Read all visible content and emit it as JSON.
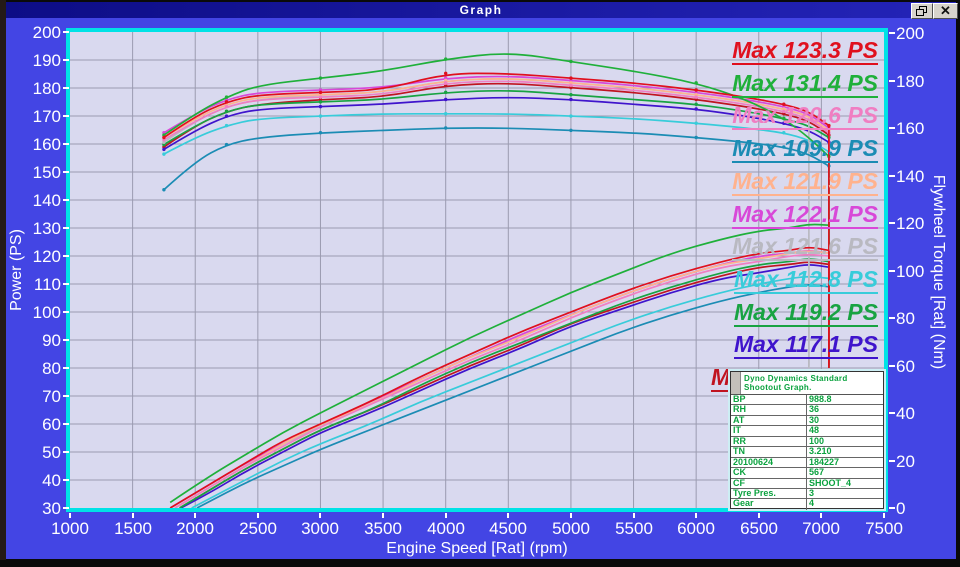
{
  "window": {
    "title": "Graph",
    "icons": {
      "close": "✕"
    }
  },
  "colors": {
    "window_bg": "#4345e4",
    "titlebar": "#15159a",
    "plot_bg": "#d9d9ef",
    "grid": "#9b9bb0",
    "plot_border": "#00e2e6",
    "table_text": "#0aa23e"
  },
  "chart_data": {
    "type": "line",
    "xlabel": "Engine Speed [Rat] (rpm)",
    "ylabel_left": "Power (PS)",
    "ylabel_right": "Flywheel Torque [Rat] (Nm)",
    "xlim": [
      1000,
      7500
    ],
    "ylim_left": [
      30,
      200
    ],
    "ylim_right": [
      0,
      200
    ],
    "grid": true,
    "x_ticks": [
      1000,
      1500,
      2000,
      2500,
      3000,
      3500,
      4000,
      4500,
      5000,
      5500,
      6000,
      6500,
      7000,
      7500
    ],
    "y_left_ticks": [
      200,
      190,
      180,
      170,
      160,
      150,
      140,
      130,
      120,
      110,
      100,
      90,
      80,
      70,
      60,
      50,
      40,
      30
    ],
    "y_right_ticks": [
      200,
      180,
      160,
      140,
      120,
      100,
      80,
      60,
      40,
      20,
      0
    ],
    "torque_rpm": [
      1750,
      2000,
      2250,
      2500,
      3000,
      3500,
      4000,
      4500,
      5000,
      5500,
      6000,
      6400,
      6700,
      6900,
      7060
    ],
    "power_rpm": [
      1800,
      2100,
      2400,
      2700,
      3000,
      3400,
      3800,
      4200,
      4600,
      5000,
      5400,
      5800,
      6200,
      6500,
      6750,
      6900,
      7060
    ],
    "drop_end": {
      "power_ps": 80,
      "torque_nm": 60
    },
    "series": [
      {
        "id": "run-1",
        "label": "Max 123.3 PS",
        "color": "#e0101e",
        "max_ps": 123.3,
        "partial": false,
        "torque_nm": [
          156,
          165,
          171,
          174,
          175,
          176,
          183,
          183,
          181,
          179,
          176,
          173,
          170,
          167,
          161
        ],
        "power_ps": [
          30,
          38,
          46,
          54,
          60,
          68,
          77,
          85,
          93,
          100,
          107,
          113,
          118,
          121,
          122,
          123.3,
          122
        ]
      },
      {
        "id": "run-2",
        "label": "Max 131.4 PS",
        "color": "#1fb03a",
        "max_ps": 131.4,
        "partial": false,
        "torque_nm": [
          157,
          166,
          173,
          178,
          181,
          184,
          189,
          192,
          188,
          184,
          179,
          172,
          164,
          156,
          148
        ],
        "power_ps": [
          32,
          41,
          49,
          57,
          64,
          73,
          82,
          91,
          99,
          107,
          114,
          121,
          126,
          129,
          130,
          131.4,
          131
        ]
      },
      {
        "id": "run-3",
        "label": "Max 120.6 PS",
        "color": "#f07ec2",
        "max_ps": 120.6,
        "partial": false,
        "torque_nm": [
          155,
          163,
          169,
          172,
          173,
          174,
          179,
          180,
          178,
          176,
          173,
          170,
          167,
          164,
          158
        ],
        "power_ps": [
          29,
          37,
          45,
          52,
          59,
          67,
          75,
          83,
          90,
          98,
          105,
          111,
          116,
          118,
          120,
          120.6,
          120
        ]
      },
      {
        "id": "run-4",
        "label": "Max 109.9 PS",
        "color": "#1b8cb4",
        "max_ps": 109.9,
        "partial": false,
        "torque_nm": [
          134,
          146,
          153,
          156,
          158,
          159,
          160,
          160,
          159,
          158,
          156,
          154,
          152,
          149,
          144
        ],
        "power_ps": [
          25,
          32,
          39,
          45,
          51,
          58,
          65,
          72,
          79,
          86,
          93,
          99,
          104,
          107,
          109,
          109.9,
          109
        ]
      },
      {
        "id": "run-5",
        "label": "Max 121.9 PS",
        "color": "#ffb28e",
        "max_ps": 121.9,
        "partial": false,
        "torque_nm": [
          156,
          164,
          170,
          173,
          174,
          175,
          180,
          181,
          179,
          177,
          174,
          171,
          168,
          165,
          159
        ],
        "power_ps": [
          29,
          37,
          45,
          53,
          60,
          67,
          76,
          84,
          91,
          99,
          106,
          112,
          117,
          119,
          121,
          121.9,
          121
        ]
      },
      {
        "id": "run-6",
        "label": "Max 122.1 PS",
        "color": "#d848d8",
        "max_ps": 122.1,
        "partial": false,
        "torque_nm": [
          158,
          166,
          172,
          175,
          176,
          177,
          181,
          182,
          180,
          178,
          175,
          172,
          169,
          166,
          160
        ],
        "power_ps": [
          30,
          38,
          46,
          53,
          60,
          68,
          76,
          84,
          92,
          99,
          106,
          112,
          117,
          120,
          121,
          122.1,
          121
        ]
      },
      {
        "id": "run-7",
        "label": "Max 121.6 PS",
        "color": "#b9b9c1",
        "max_ps": 121.6,
        "partial": false,
        "torque_nm": [
          154,
          163,
          169,
          172,
          174,
          175,
          180,
          181,
          179,
          177,
          174,
          171,
          168,
          165,
          null
        ],
        "power_ps": [
          29,
          37,
          45,
          53,
          59,
          67,
          76,
          84,
          91,
          99,
          106,
          112,
          117,
          120,
          121,
          121.6,
          null
        ]
      },
      {
        "id": "run-8",
        "label": "Max 112.8 PS",
        "color": "#38ccda",
        "max_ps": 112.8,
        "partial": false,
        "torque_nm": [
          149,
          156,
          161,
          164,
          165,
          166,
          166,
          166,
          165,
          164,
          162,
          160,
          158,
          155,
          150
        ],
        "power_ps": [
          26,
          33,
          40,
          47,
          53,
          60,
          68,
          75,
          82,
          89,
          96,
          102,
          107,
          110,
          112,
          112.8,
          112
        ]
      },
      {
        "id": "run-9",
        "label": "Max 119.2 PS",
        "color": "#18a342",
        "max_ps": 119.2,
        "partial": false,
        "torque_nm": [
          153,
          161,
          167,
          170,
          171,
          172,
          175,
          176,
          174,
          172,
          170,
          167,
          164,
          161,
          156
        ],
        "power_ps": [
          28,
          36,
          44,
          51,
          58,
          65,
          74,
          82,
          89,
          96,
          103,
          109,
          114,
          117,
          118,
          119.2,
          118
        ]
      },
      {
        "id": "run-10",
        "label": "Max 117.1 PS",
        "color": "#3f14cc",
        "max_ps": 117.1,
        "partial": false,
        "torque_nm": [
          151,
          159,
          165,
          168,
          169,
          170,
          172,
          173,
          172,
          170,
          168,
          165,
          162,
          159,
          154
        ],
        "power_ps": [
          28,
          35,
          43,
          50,
          57,
          64,
          72,
          80,
          87,
          95,
          101,
          107,
          112,
          114,
          116,
          117.1,
          116
        ]
      },
      {
        "id": "run-11",
        "label": "M",
        "color": "#c01420",
        "max_ps": null,
        "partial": true,
        "torque_nm": [
          152,
          161,
          167,
          170,
          172,
          173,
          178,
          179,
          177,
          175,
          172,
          169,
          166,
          163,
          157
        ],
        "power_ps": [
          28,
          36,
          44,
          51,
          58,
          65,
          73,
          81,
          88,
          96,
          102,
          108,
          113,
          116,
          117,
          118,
          117
        ]
      }
    ]
  },
  "info_table": {
    "header": "Dyno Dynamics Standard Shootout Graph.",
    "rows": [
      [
        "BP",
        "988.8"
      ],
      [
        "RH",
        "36"
      ],
      [
        "AT",
        "30"
      ],
      [
        "IT",
        "48"
      ],
      [
        "RR",
        "100"
      ],
      [
        "TN",
        "3.210"
      ],
      [
        "20100624",
        "184227"
      ],
      [
        "CK",
        "567"
      ],
      [
        "CF",
        "SHOOT_4"
      ],
      [
        "Tyre Pres.",
        "3"
      ],
      [
        "Gear",
        "4"
      ]
    ]
  }
}
